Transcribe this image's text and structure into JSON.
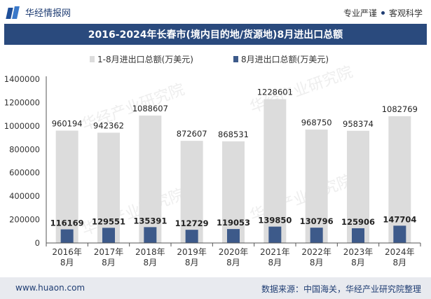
{
  "header": {
    "brand_name": "华经情报网",
    "tag1": "专业严谨",
    "tag2": "客观科学"
  },
  "watermark": "华经产业研究院",
  "footer": {
    "url": "www.huaon.com",
    "source": "数据来源：中国海关，华经产业研究院整理"
  },
  "colors": {
    "title_bg": "#2a4a7d",
    "series1": "#dcdcdc",
    "series2": "#3d5a8a"
  },
  "chart_data": {
    "type": "bar",
    "title": "2016-2024年长春市(境内目的地/货源地)8月进出口总额",
    "categories": [
      [
        "2016年",
        "8月"
      ],
      [
        "2017年",
        "8月"
      ],
      [
        "2018年",
        "8月"
      ],
      [
        "2019年",
        "8月"
      ],
      [
        "2020年",
        "8月"
      ],
      [
        "2021年",
        "8月"
      ],
      [
        "2022年",
        "8月"
      ],
      [
        "2023年",
        "8月"
      ],
      [
        "2024年",
        "8月"
      ]
    ],
    "series": [
      {
        "name": "1-8月进出口总额(万美元)",
        "values": [
          960194,
          942362,
          1088607,
          872607,
          868531,
          1228601,
          968750,
          958374,
          1082769
        ]
      },
      {
        "name": "8月进出口总额(万美元)",
        "values": [
          116169,
          129551,
          135391,
          112729,
          119053,
          139850,
          130796,
          125906,
          147704
        ]
      }
    ],
    "yticks": [
      "0",
      "200000",
      "400000",
      "600000",
      "800000",
      "1000000",
      "1200000",
      "1400000"
    ],
    "ylim": [
      0,
      1400000
    ],
    "legend_position": "top"
  }
}
